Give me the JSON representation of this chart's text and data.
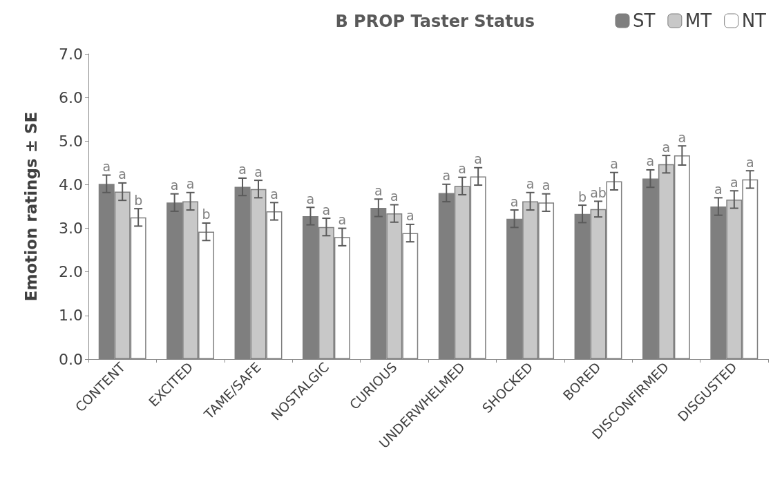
{
  "chart_data": {
    "type": "bar",
    "legend_title": "B PROP Taster Status",
    "ylabel": "Emotion ratings ± SE",
    "categories": [
      "CONTENT",
      "EXCITED",
      "TAME/SAFE",
      "NOSTALGIC",
      "CURIOUS",
      "UNDERWHELMED",
      "SHOCKED",
      "BORED",
      "DISCONFIRMED",
      "DISGUSTED"
    ],
    "series": [
      {
        "name": "ST",
        "color": "#7f7f7f",
        "values": [
          4.02,
          3.59,
          3.95,
          3.28,
          3.47,
          3.81,
          3.22,
          3.33,
          4.14,
          3.5
        ],
        "errors": [
          0.2,
          0.2,
          0.2,
          0.2,
          0.2,
          0.2,
          0.2,
          0.2,
          0.2,
          0.2
        ],
        "value_labels": [
          "a",
          "a",
          "a",
          "a",
          "a",
          "a",
          "a",
          "b",
          "a",
          "a"
        ]
      },
      {
        "name": "MT",
        "color": "#c8c8c8",
        "values": [
          3.84,
          3.62,
          3.9,
          3.03,
          3.34,
          3.97,
          3.62,
          3.44,
          4.47,
          3.66
        ],
        "errors": [
          0.2,
          0.2,
          0.2,
          0.2,
          0.2,
          0.2,
          0.2,
          0.18,
          0.2,
          0.2
        ],
        "value_labels": [
          "a",
          "a",
          "a",
          "a",
          "a",
          "a",
          "a",
          "ab",
          "a",
          "a"
        ]
      },
      {
        "name": "NT",
        "color": "#ffffff",
        "values": [
          3.25,
          2.92,
          3.39,
          2.8,
          2.89,
          4.19,
          3.59,
          4.08,
          4.67,
          4.12
        ],
        "errors": [
          0.2,
          0.2,
          0.2,
          0.2,
          0.2,
          0.2,
          0.2,
          0.2,
          0.22,
          0.2
        ],
        "value_labels": [
          "b",
          "b",
          "a",
          "a",
          "a",
          "a",
          "a",
          "a",
          "a",
          "a"
        ]
      }
    ],
    "ylim": [
      0,
      7
    ],
    "yticks": [
      {
        "value": 0,
        "label": "0.0"
      },
      {
        "value": 1,
        "label": "1.0"
      },
      {
        "value": 2,
        "label": "2.0"
      },
      {
        "value": 3,
        "label": "3.0"
      },
      {
        "value": 4,
        "label": "4.0"
      },
      {
        "value": 5,
        "label": "5.0"
      },
      {
        "value": 6,
        "label": "6.0"
      },
      {
        "value": 7,
        "label": "7.0"
      }
    ],
    "grid": false,
    "legend": "top right"
  }
}
